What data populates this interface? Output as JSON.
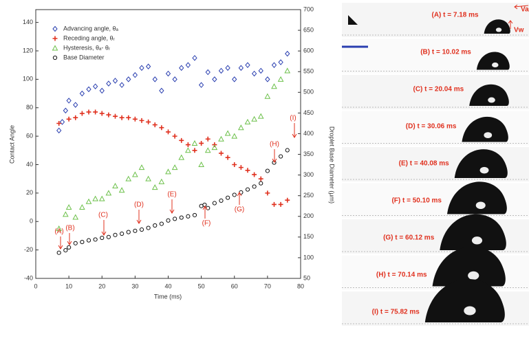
{
  "chart_data": {
    "type": "scatter",
    "xlabel": "Time (ms)",
    "ylabel": "Contact Angle",
    "y2label": "Droplet Base Diameter (μm)",
    "xlim": [
      0,
      80
    ],
    "xticks": [
      0,
      10,
      20,
      30,
      40,
      50,
      60,
      70,
      80
    ],
    "ylim": [
      -40,
      149
    ],
    "yticks": [
      -40,
      -20,
      0,
      20,
      40,
      60,
      80,
      100,
      120,
      140
    ],
    "y2lim": [
      50,
      700
    ],
    "y2ticks": [
      50,
      100,
      150,
      200,
      250,
      300,
      350,
      400,
      450,
      500,
      550,
      600,
      650,
      700
    ],
    "legend": "top-left",
    "series": [
      {
        "name": "Advancing angle, θₐ",
        "color": "#2a3fb0",
        "marker": "diamond",
        "x": [
          7,
          8,
          9,
          10,
          12,
          14,
          16,
          18,
          20,
          22,
          24,
          26,
          28,
          30,
          32,
          34,
          36,
          38,
          40,
          42,
          44,
          46,
          48,
          50,
          52,
          54,
          56,
          58,
          60,
          62,
          64,
          66,
          68,
          70,
          72,
          74,
          76
        ],
        "values": [
          64,
          70,
          78,
          85,
          82,
          90,
          93,
          95,
          92,
          97,
          99,
          96,
          100,
          103,
          108,
          109,
          100,
          92,
          104,
          100,
          108,
          110,
          115,
          96,
          105,
          100,
          106,
          108,
          100,
          108,
          110,
          104,
          106,
          100,
          110,
          112,
          118
        ]
      },
      {
        "name": "Receding angle, θᵣ",
        "color": "#e0301e",
        "marker": "plus",
        "x": [
          7,
          10,
          12,
          14,
          16,
          18,
          20,
          22,
          24,
          26,
          28,
          30,
          32,
          34,
          36,
          38,
          40,
          42,
          44,
          46,
          48,
          50,
          52,
          54,
          56,
          58,
          60,
          62,
          64,
          66,
          68,
          70,
          72,
          74,
          76
        ],
        "values": [
          69,
          72,
          73,
          76,
          77,
          77,
          76,
          75,
          74,
          73,
          73,
          72,
          71,
          70,
          68,
          66,
          63,
          60,
          57,
          54,
          50,
          55,
          58,
          54,
          48,
          45,
          40,
          38,
          36,
          33,
          30,
          20,
          12,
          12,
          15
        ]
      },
      {
        "name": "Hysteresis, θₐ- θᵣ",
        "color": "#6cc04a",
        "marker": "triangle",
        "x": [
          7,
          9,
          10,
          12,
          14,
          16,
          18,
          20,
          22,
          24,
          26,
          28,
          30,
          32,
          34,
          36,
          38,
          40,
          42,
          44,
          46,
          48,
          50,
          52,
          54,
          56,
          58,
          60,
          62,
          64,
          66,
          68,
          70,
          72,
          74,
          76
        ],
        "values": [
          -5,
          5,
          10,
          3,
          10,
          14,
          16,
          16,
          20,
          25,
          22,
          30,
          33,
          38,
          30,
          24,
          28,
          35,
          38,
          45,
          50,
          55,
          40,
          50,
          52,
          58,
          62,
          60,
          66,
          70,
          72,
          74,
          88,
          95,
          100,
          106
        ]
      },
      {
        "name": "Base Diameter",
        "color": "#111111",
        "marker": "circle",
        "axis": "y2",
        "x": [
          7,
          9,
          10,
          12,
          14,
          16,
          18,
          20,
          22,
          24,
          26,
          28,
          30,
          32,
          34,
          36,
          38,
          40,
          42,
          44,
          46,
          48,
          50,
          51,
          52,
          54,
          56,
          58,
          60,
          62,
          64,
          66,
          68,
          70,
          72,
          74,
          76
        ],
        "values": [
          112,
          118,
          125,
          135,
          138,
          142,
          144,
          148,
          150,
          155,
          158,
          162,
          165,
          168,
          172,
          178,
          182,
          190,
          194,
          197,
          200,
          203,
          225,
          228,
          220,
          232,
          238,
          245,
          252,
          258,
          265,
          272,
          280,
          310,
          330,
          345,
          360
        ]
      }
    ],
    "annotations": [
      "(A)",
      "(B)",
      "(C)",
      "(D)",
      "(E)",
      "(F)",
      "(G)",
      "(H)",
      "(I)"
    ]
  },
  "panels": [
    {
      "label": "(A) t = 7.18 ms"
    },
    {
      "label": "(B) t = 10.02 ms"
    },
    {
      "label": "(C) t = 20.04 ms"
    },
    {
      "label": "(D) t = 30.06 ms"
    },
    {
      "label": "(E) t = 40.08 ms"
    },
    {
      "label": "(F) t = 50.10 ms"
    },
    {
      "label": "(G) t = 60.12 ms"
    },
    {
      "label": "(H) t = 70.14 ms"
    },
    {
      "label": "(I) t = 75.82 ms"
    }
  ],
  "velocity_labels": [
    "Va",
    "Vw"
  ]
}
